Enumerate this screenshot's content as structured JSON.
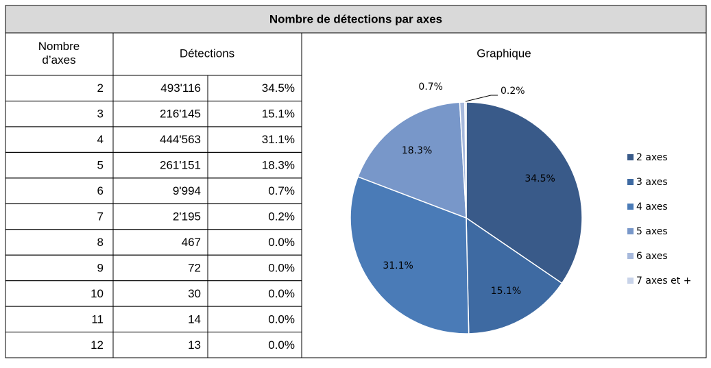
{
  "header": {
    "title": "Nombre de détections par axes",
    "col_axes": "Nombre d’axes",
    "col_detections": "Détections",
    "col_graph": "Graphique"
  },
  "table": {
    "rows": [
      [
        "2",
        "493'116",
        "34.5%"
      ],
      [
        "3",
        "216'145",
        "15.1%"
      ],
      [
        "4",
        "444'563",
        "31.1%"
      ],
      [
        "5",
        "261'151",
        "18.3%"
      ],
      [
        "6",
        "9'994",
        "0.7%"
      ],
      [
        "7",
        "2'195",
        "0.2%"
      ],
      [
        "8",
        "467",
        "0.0%"
      ],
      [
        "9",
        "72",
        "0.0%"
      ],
      [
        "10",
        "30",
        "0.0%"
      ],
      [
        "11",
        "14",
        "0.0%"
      ],
      [
        "12",
        "13",
        "0.0%"
      ]
    ]
  },
  "chart_data": {
    "type": "pie",
    "categories": [
      "2 axes",
      "3 axes",
      "4 axes",
      "5 axes",
      "6 axes",
      "7 axes et +"
    ],
    "values": [
      34.5,
      15.1,
      31.1,
      18.3,
      0.7,
      0.2
    ],
    "value_labels": [
      "34.5%",
      "15.1%",
      "31.1%",
      "18.3%",
      "0.7%",
      "0.2%"
    ],
    "colors": [
      "#395a89",
      "#3e6aa2",
      "#4a7bb7",
      "#7897c9",
      "#a7b9dc",
      "#c8d3e9"
    ],
    "legend": "right"
  }
}
